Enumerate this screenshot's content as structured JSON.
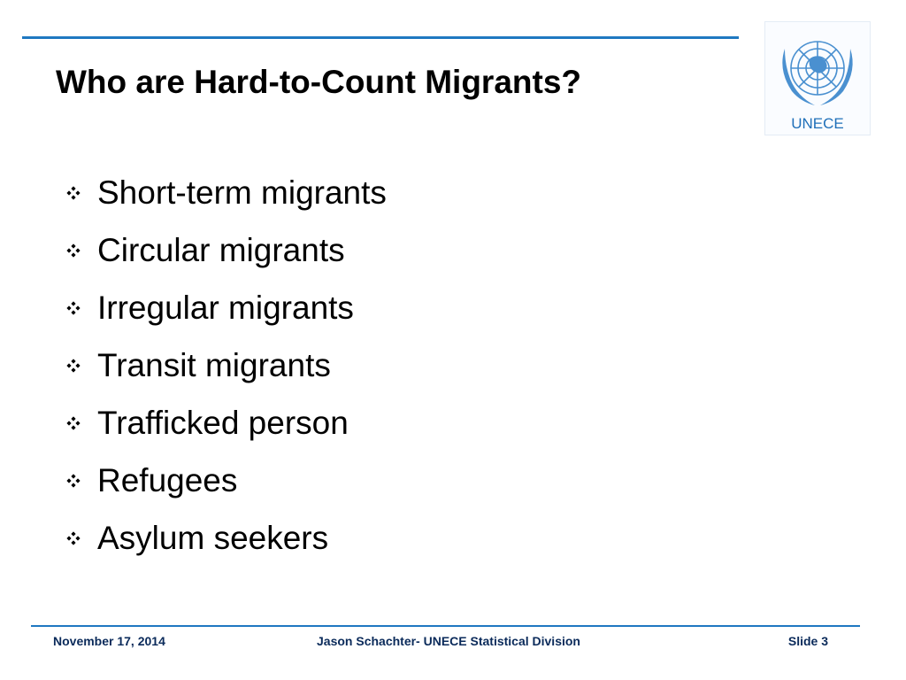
{
  "header": {
    "title": "Who are Hard-to-Count Migrants?",
    "logo_text": "UNECE"
  },
  "bullets": [
    "Short-term migrants",
    "Circular migrants",
    "Irregular migrants",
    "Transit migrants",
    "Trafficked person",
    "Refugees",
    "Asylum seekers"
  ],
  "footer": {
    "date": "November 17, 2014",
    "author": "Jason Schachter- UNECE Statistical Division",
    "slide": "Slide 3"
  }
}
